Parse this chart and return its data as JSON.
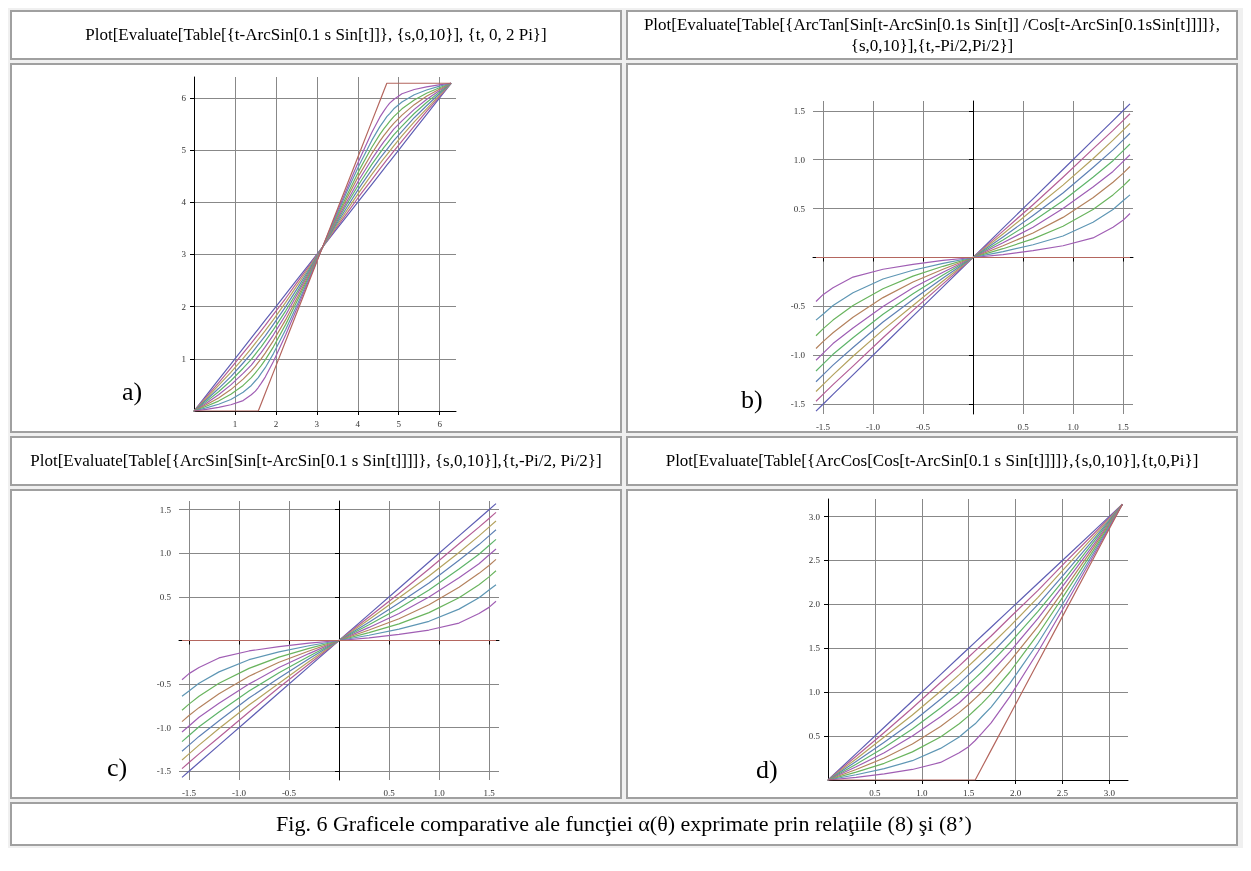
{
  "chart_data": [
    {
      "type": "line",
      "title": "Plot[Evaluate[Table[{t-ArcSin[0.1 s Sin[t]]}, {s,0,10}], {t, 0, 2 Pi}]",
      "annotations": [
        "a)"
      ],
      "grid": true,
      "marker": "none",
      "xlim": [
        0,
        6.4
      ],
      "ylim": [
        0,
        6.4
      ],
      "xticks": [
        1,
        2,
        3,
        4,
        5,
        6
      ],
      "yticks": [
        1,
        2,
        3,
        4,
        5,
        6
      ],
      "x": [
        0,
        0.3,
        0.6,
        0.9,
        1.2,
        1.4,
        1.5,
        1.57,
        1.64,
        1.74,
        1.94,
        2.24,
        2.54,
        2.84,
        3.14,
        3.44,
        3.74,
        4.04,
        4.34,
        4.54,
        4.64,
        4.71,
        4.78,
        4.88,
        5.08,
        5.38,
        5.68,
        5.98,
        6.28
      ],
      "series": [
        {
          "color": "#5e5eb4",
          "values": [
            0,
            0.3,
            0.6,
            0.9,
            1.2,
            1.4,
            1.5,
            1.57,
            1.64,
            1.74,
            1.94,
            2.24,
            2.54,
            2.84,
            3.14,
            3.44,
            3.74,
            4.04,
            4.34,
            4.54,
            4.64,
            4.71,
            4.78,
            4.88,
            5.08,
            5.38,
            5.68,
            5.98,
            6.28
          ]
        },
        {
          "color": "#b45e96",
          "values": [
            0,
            0.27,
            0.54,
            0.82,
            1.11,
            1.3,
            1.4,
            1.47,
            1.54,
            1.64,
            1.85,
            2.16,
            2.49,
            2.81,
            3.14,
            3.47,
            3.79,
            4.12,
            4.43,
            4.64,
            4.74,
            4.81,
            4.88,
            4.98,
            5.17,
            5.46,
            5.74,
            6.01,
            6.28
          ]
        },
        {
          "color": "#b4a25e",
          "values": [
            0,
            0.24,
            0.49,
            0.74,
            1.01,
            1.2,
            1.3,
            1.37,
            1.44,
            1.54,
            1.75,
            2.08,
            2.43,
            2.78,
            3.14,
            3.5,
            3.85,
            4.2,
            4.53,
            4.74,
            4.84,
            4.91,
            4.98,
            5.08,
            5.27,
            5.54,
            5.79,
            6.04,
            6.28
          ]
        },
        {
          "color": "#5e80b4",
          "values": [
            0,
            0.21,
            0.43,
            0.66,
            0.92,
            1.1,
            1.2,
            1.27,
            1.34,
            1.44,
            1.66,
            2,
            2.37,
            2.75,
            3.14,
            3.53,
            3.91,
            4.28,
            4.62,
            4.84,
            4.94,
            5.01,
            5.08,
            5.18,
            5.36,
            5.62,
            5.85,
            6.07,
            6.28
          ]
        },
        {
          "color": "#5eb46a",
          "values": [
            0,
            0.18,
            0.37,
            0.58,
            0.82,
            0.99,
            1.09,
            1.16,
            1.23,
            1.34,
            1.56,
            1.92,
            2.31,
            2.72,
            3.14,
            3.56,
            3.97,
            4.36,
            4.72,
            4.94,
            5.05,
            5.12,
            5.19,
            5.29,
            5.46,
            5.7,
            5.91,
            6.1,
            6.28
          ]
        },
        {
          "color": "#9e5eb4",
          "values": [
            0,
            0.15,
            0.31,
            0.5,
            0.72,
            0.88,
            0.98,
            1.05,
            1.12,
            1.23,
            1.46,
            1.84,
            2.26,
            2.69,
            3.14,
            3.59,
            4.02,
            4.44,
            4.82,
            5.05,
            5.16,
            5.23,
            5.3,
            5.4,
            5.56,
            5.78,
            5.97,
            6.13,
            6.28
          ]
        },
        {
          "color": "#b4825e",
          "values": [
            0,
            0.12,
            0.25,
            0.41,
            0.61,
            0.77,
            0.86,
            0.93,
            1,
            1.11,
            1.35,
            1.75,
            2.2,
            2.66,
            3.14,
            3.62,
            4.08,
            4.53,
            4.93,
            5.17,
            5.28,
            5.35,
            5.42,
            5.51,
            5.67,
            5.87,
            6.03,
            6.16,
            6.28
          ]
        },
        {
          "color": "#6ab45e",
          "values": [
            0,
            0.09,
            0.19,
            0.32,
            0.49,
            0.64,
            0.73,
            0.8,
            0.87,
            0.98,
            1.23,
            1.66,
            2.14,
            2.63,
            3.14,
            3.65,
            4.14,
            4.62,
            5.05,
            5.3,
            5.41,
            5.48,
            5.55,
            5.64,
            5.79,
            5.96,
            6.09,
            6.19,
            6.28
          ]
        },
        {
          "color": "#5e96b4",
          "values": [
            0,
            0.06,
            0.13,
            0.22,
            0.36,
            0.49,
            0.58,
            0.64,
            0.72,
            0.83,
            1.1,
            1.56,
            2.07,
            2.6,
            3.14,
            3.68,
            4.21,
            4.72,
            5.18,
            5.45,
            5.56,
            5.64,
            5.7,
            5.79,
            5.92,
            6.06,
            6.15,
            6.22,
            6.28
          ]
        },
        {
          "color": "#a05eb4",
          "values": [
            0,
            0.03,
            0.07,
            0.12,
            0.2,
            0.31,
            0.38,
            0.45,
            0.53,
            0.65,
            0.95,
            1.46,
            2.01,
            2.57,
            3.14,
            3.71,
            4.27,
            4.82,
            5.33,
            5.63,
            5.75,
            5.83,
            5.9,
            5.97,
            6.08,
            6.16,
            6.21,
            6.25,
            6.28
          ]
        },
        {
          "color": "#b4665e",
          "values": [
            0,
            0,
            0,
            0,
            0,
            0,
            0,
            0,
            0.14,
            0.34,
            0.74,
            1.34,
            1.94,
            2.54,
            3.14,
            3.74,
            4.34,
            4.94,
            5.54,
            5.94,
            6.14,
            6.28,
            6.28,
            6.28,
            6.28,
            6.28,
            6.28,
            6.28,
            6.28
          ]
        }
      ]
    },
    {
      "type": "line",
      "title": "Plot[Evaluate[Table[{ArcTan[Sin[t-ArcSin[0.1s Sin[t]] /Cos[t-ArcSin[0.1sSin[t]]]]},{s,0,10}],{t,-Pi/2,Pi/2}]",
      "annotations": [
        "b)"
      ],
      "grid": true,
      "marker": "none",
      "xlim": [
        -1.6,
        1.6
      ],
      "ylim": [
        -1.6,
        1.6
      ],
      "xticks": [
        {
          "value": -1.5,
          "label": "-1.5"
        },
        {
          "value": -1,
          "label": "-1.0"
        },
        {
          "value": -0.5,
          "label": "-0.5"
        },
        0.5,
        {
          "value": 1,
          "label": "1.0"
        },
        1.5
      ],
      "yticks": [
        {
          "value": -1.5,
          "label": "-1.5"
        },
        {
          "value": -1,
          "label": "-1.0"
        },
        {
          "value": -0.5,
          "label": "-0.5"
        },
        0.5,
        {
          "value": 1,
          "label": "1.0"
        },
        1.5
      ],
      "x": [
        -1.57,
        -1.5,
        -1.4,
        -1.2,
        -0.9,
        -0.6,
        -0.3,
        0,
        0.3,
        0.6,
        0.9,
        1.2,
        1.4,
        1.5,
        1.57
      ],
      "series": [
        {
          "color": "#5e5eb4",
          "values": [
            -1.57,
            -1.5,
            -1.4,
            -1.2,
            -0.9,
            -0.6,
            -0.3,
            0,
            0.3,
            0.6,
            0.9,
            1.2,
            1.4,
            1.5,
            1.57
          ]
        },
        {
          "color": "#b45e96",
          "values": [
            -1.47,
            -1.4,
            -1.3,
            -1.11,
            -0.82,
            -0.54,
            -0.27,
            0,
            0.27,
            0.54,
            0.82,
            1.11,
            1.3,
            1.4,
            1.47
          ]
        },
        {
          "color": "#b4a25e",
          "values": [
            -1.37,
            -1.3,
            -1.2,
            -1.01,
            -0.74,
            -0.49,
            -0.24,
            0,
            0.24,
            0.49,
            0.74,
            1.01,
            1.2,
            1.3,
            1.37
          ]
        },
        {
          "color": "#5e80b4",
          "values": [
            -1.27,
            -1.2,
            -1.1,
            -0.92,
            -0.66,
            -0.43,
            -0.21,
            0,
            0.21,
            0.43,
            0.66,
            0.92,
            1.1,
            1.2,
            1.27
          ]
        },
        {
          "color": "#5eb46a",
          "values": [
            -1.16,
            -1.09,
            -0.99,
            -0.82,
            -0.58,
            -0.37,
            -0.18,
            0,
            0.18,
            0.37,
            0.58,
            0.82,
            0.99,
            1.09,
            1.16
          ]
        },
        {
          "color": "#9e5eb4",
          "values": [
            -1.05,
            -0.98,
            -0.88,
            -0.72,
            -0.5,
            -0.31,
            -0.15,
            0,
            0.15,
            0.31,
            0.5,
            0.72,
            0.88,
            0.98,
            1.05
          ]
        },
        {
          "color": "#b4825e",
          "values": [
            -0.93,
            -0.86,
            -0.77,
            -0.61,
            -0.41,
            -0.25,
            -0.12,
            0,
            0.12,
            0.25,
            0.41,
            0.61,
            0.77,
            0.86,
            0.93
          ]
        },
        {
          "color": "#6ab45e",
          "values": [
            -0.8,
            -0.73,
            -0.64,
            -0.49,
            -0.32,
            -0.19,
            -0.09,
            0,
            0.09,
            0.19,
            0.32,
            0.49,
            0.64,
            0.73,
            0.8
          ]
        },
        {
          "color": "#5e96b4",
          "values": [
            -0.64,
            -0.58,
            -0.49,
            -0.36,
            -0.22,
            -0.13,
            -0.06,
            0,
            0.06,
            0.13,
            0.22,
            0.36,
            0.49,
            0.58,
            0.64
          ]
        },
        {
          "color": "#a05eb4",
          "values": [
            -0.45,
            -0.38,
            -0.31,
            -0.2,
            -0.12,
            -0.07,
            -0.03,
            0,
            0.03,
            0.07,
            0.12,
            0.2,
            0.31,
            0.38,
            0.45
          ]
        },
        {
          "color": "#b4665e",
          "values": [
            0,
            0,
            0,
            0,
            0,
            0,
            0,
            0,
            0,
            0,
            0,
            0,
            0,
            0,
            0
          ]
        }
      ]
    },
    {
      "type": "line",
      "title": "Plot[Evaluate[Table[{ArcSin[Sin[t-ArcSin[0.1 s Sin[t]]]]}, {s,0,10}],{t,-Pi/2, Pi/2}]",
      "annotations": [
        "c)"
      ],
      "grid": true,
      "marker": "none",
      "xlim": [
        -1.6,
        1.6
      ],
      "ylim": [
        -1.6,
        1.6
      ],
      "xticks": [
        {
          "value": -1.5,
          "label": "-1.5"
        },
        {
          "value": -1,
          "label": "-1.0"
        },
        {
          "value": -0.5,
          "label": "-0.5"
        },
        0.5,
        {
          "value": 1,
          "label": "1.0"
        },
        1.5
      ],
      "yticks": [
        {
          "value": -1.5,
          "label": "-1.5"
        },
        {
          "value": -1,
          "label": "-1.0"
        },
        {
          "value": -0.5,
          "label": "-0.5"
        },
        0.5,
        {
          "value": 1,
          "label": "1.0"
        },
        1.5
      ],
      "x": [
        -1.57,
        -1.5,
        -1.4,
        -1.2,
        -0.9,
        -0.6,
        -0.3,
        0,
        0.3,
        0.6,
        0.9,
        1.2,
        1.4,
        1.5,
        1.57
      ],
      "series": [
        {
          "color": "#5e5eb4",
          "values": [
            -1.57,
            -1.5,
            -1.4,
            -1.2,
            -0.9,
            -0.6,
            -0.3,
            0,
            0.3,
            0.6,
            0.9,
            1.2,
            1.4,
            1.5,
            1.57
          ]
        },
        {
          "color": "#b45e96",
          "values": [
            -1.47,
            -1.4,
            -1.3,
            -1.11,
            -0.82,
            -0.54,
            -0.27,
            0,
            0.27,
            0.54,
            0.82,
            1.11,
            1.3,
            1.4,
            1.47
          ]
        },
        {
          "color": "#b4a25e",
          "values": [
            -1.37,
            -1.3,
            -1.2,
            -1.01,
            -0.74,
            -0.49,
            -0.24,
            0,
            0.24,
            0.49,
            0.74,
            1.01,
            1.2,
            1.3,
            1.37
          ]
        },
        {
          "color": "#5e80b4",
          "values": [
            -1.27,
            -1.2,
            -1.1,
            -0.92,
            -0.66,
            -0.43,
            -0.21,
            0,
            0.21,
            0.43,
            0.66,
            0.92,
            1.1,
            1.2,
            1.27
          ]
        },
        {
          "color": "#5eb46a",
          "values": [
            -1.16,
            -1.09,
            -0.99,
            -0.82,
            -0.58,
            -0.37,
            -0.18,
            0,
            0.18,
            0.37,
            0.58,
            0.82,
            0.99,
            1.09,
            1.16
          ]
        },
        {
          "color": "#9e5eb4",
          "values": [
            -1.05,
            -0.98,
            -0.88,
            -0.72,
            -0.5,
            -0.31,
            -0.15,
            0,
            0.15,
            0.31,
            0.5,
            0.72,
            0.88,
            0.98,
            1.05
          ]
        },
        {
          "color": "#b4825e",
          "values": [
            -0.93,
            -0.86,
            -0.77,
            -0.61,
            -0.41,
            -0.25,
            -0.12,
            0,
            0.12,
            0.25,
            0.41,
            0.61,
            0.77,
            0.86,
            0.93
          ]
        },
        {
          "color": "#6ab45e",
          "values": [
            -0.8,
            -0.73,
            -0.64,
            -0.49,
            -0.32,
            -0.19,
            -0.09,
            0,
            0.09,
            0.19,
            0.32,
            0.49,
            0.64,
            0.73,
            0.8
          ]
        },
        {
          "color": "#5e96b4",
          "values": [
            -0.64,
            -0.58,
            -0.49,
            -0.36,
            -0.22,
            -0.13,
            -0.06,
            0,
            0.06,
            0.13,
            0.22,
            0.36,
            0.49,
            0.58,
            0.64
          ]
        },
        {
          "color": "#a05eb4",
          "values": [
            -0.45,
            -0.38,
            -0.31,
            -0.2,
            -0.12,
            -0.07,
            -0.03,
            0,
            0.03,
            0.07,
            0.12,
            0.2,
            0.31,
            0.38,
            0.45
          ]
        },
        {
          "color": "#b4665e",
          "values": [
            0,
            0,
            0,
            0,
            0,
            0,
            0,
            0,
            0,
            0,
            0,
            0,
            0,
            0,
            0
          ]
        }
      ]
    },
    {
      "type": "line",
      "title": "Plot[Evaluate[Table[{ArcCos[Cos[t-ArcSin[0.1 s Sin[t]]]]},{s,0,10}],{t,0,Pi}]",
      "annotations": [
        "d)",
        "Fig. 6 Graficele comparative ale funcţiei α(θ) exprimate prin relaţiile (8) şi (8’)"
      ],
      "grid": true,
      "marker": "none",
      "xlim": [
        0,
        3.2
      ],
      "ylim": [
        0,
        3.2
      ],
      "xticks": [
        0.5,
        {
          "value": 1,
          "label": "1.0"
        },
        1.5,
        {
          "value": 2,
          "label": "2.0"
        },
        2.5,
        {
          "value": 3,
          "label": "3.0"
        }
      ],
      "yticks": [
        0.5,
        {
          "value": 1,
          "label": "1.0"
        },
        1.5,
        {
          "value": 2,
          "label": "2.0"
        },
        2.5,
        {
          "value": 3,
          "label": "3.0"
        }
      ],
      "x": [
        0,
        0.3,
        0.6,
        0.9,
        1.2,
        1.4,
        1.5,
        1.57,
        1.64,
        1.74,
        1.94,
        2.24,
        2.54,
        2.84,
        3.14
      ],
      "series": [
        {
          "color": "#5e5eb4",
          "values": [
            0,
            0.3,
            0.6,
            0.9,
            1.2,
            1.4,
            1.5,
            1.57,
            1.64,
            1.74,
            1.94,
            2.24,
            2.54,
            2.84,
            3.14
          ]
        },
        {
          "color": "#b45e96",
          "values": [
            0,
            0.27,
            0.54,
            0.82,
            1.11,
            1.3,
            1.4,
            1.47,
            1.54,
            1.64,
            1.85,
            2.16,
            2.49,
            2.81,
            3.14
          ]
        },
        {
          "color": "#b4a25e",
          "values": [
            0,
            0.24,
            0.49,
            0.74,
            1.01,
            1.2,
            1.3,
            1.37,
            1.44,
            1.54,
            1.75,
            2.08,
            2.43,
            2.78,
            3.14
          ]
        },
        {
          "color": "#5e80b4",
          "values": [
            0,
            0.21,
            0.43,
            0.66,
            0.92,
            1.1,
            1.2,
            1.27,
            1.34,
            1.44,
            1.66,
            2,
            2.37,
            2.75,
            3.14
          ]
        },
        {
          "color": "#5eb46a",
          "values": [
            0,
            0.18,
            0.37,
            0.58,
            0.82,
            0.99,
            1.09,
            1.16,
            1.23,
            1.34,
            1.56,
            1.92,
            2.31,
            2.72,
            3.14
          ]
        },
        {
          "color": "#9e5eb4",
          "values": [
            0,
            0.15,
            0.31,
            0.5,
            0.72,
            0.88,
            0.98,
            1.05,
            1.12,
            1.23,
            1.46,
            1.84,
            2.26,
            2.69,
            3.14
          ]
        },
        {
          "color": "#b4825e",
          "values": [
            0,
            0.12,
            0.25,
            0.41,
            0.61,
            0.77,
            0.86,
            0.93,
            1,
            1.11,
            1.35,
            1.75,
            2.2,
            2.66,
            3.14
          ]
        },
        {
          "color": "#6ab45e",
          "values": [
            0,
            0.09,
            0.19,
            0.32,
            0.49,
            0.64,
            0.73,
            0.8,
            0.87,
            0.98,
            1.23,
            1.66,
            2.14,
            2.63,
            3.14
          ]
        },
        {
          "color": "#5e96b4",
          "values": [
            0,
            0.06,
            0.13,
            0.22,
            0.36,
            0.49,
            0.58,
            0.64,
            0.72,
            0.83,
            1.1,
            1.56,
            2.07,
            2.6,
            3.14
          ]
        },
        {
          "color": "#a05eb4",
          "values": [
            0,
            0.03,
            0.07,
            0.12,
            0.2,
            0.31,
            0.38,
            0.45,
            0.53,
            0.65,
            0.95,
            1.46,
            2.01,
            2.57,
            3.14
          ]
        },
        {
          "color": "#b4665e",
          "values": [
            0,
            0,
            0,
            0,
            0,
            0,
            0,
            0,
            0.14,
            0.34,
            0.74,
            1.34,
            1.94,
            2.54,
            3.14
          ]
        }
      ]
    }
  ]
}
